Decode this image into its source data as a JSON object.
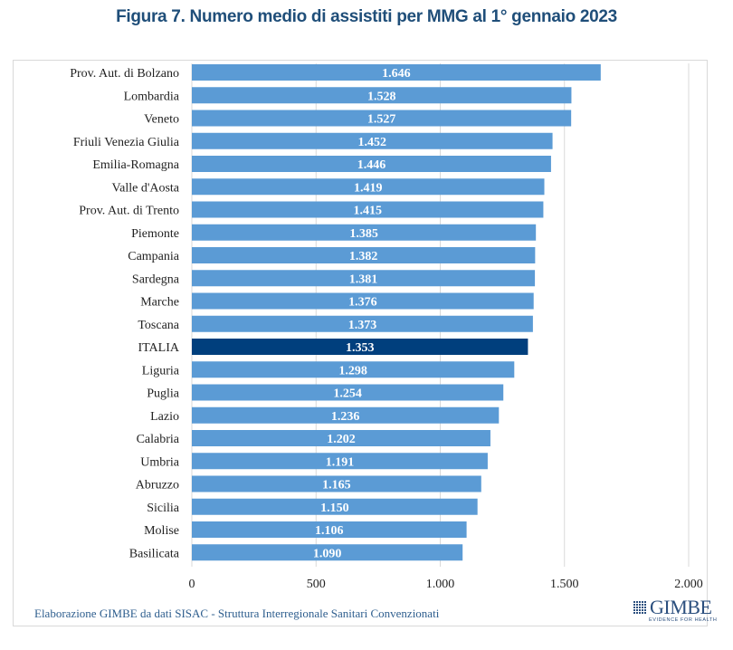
{
  "chart_data": {
    "type": "bar",
    "orientation": "horizontal",
    "title": "Figura 7. Numero medio di assistiti per MMG al 1° gennaio 2023",
    "xlabel": "",
    "ylabel": "",
    "xlim": [
      0,
      2000
    ],
    "x_ticks": [
      0,
      500,
      1000,
      1500,
      2000
    ],
    "x_tick_labels": [
      "0",
      "500",
      "1.000",
      "1.500",
      "2.000"
    ],
    "grid": "vertical",
    "categories": [
      "Prov. Aut. di Bolzano",
      "Lombardia",
      "Veneto",
      "Friuli Venezia Giulia",
      "Emilia-Romagna",
      "Valle d'Aosta",
      "Prov. Aut. di Trento",
      "Piemonte",
      "Campania",
      "Sardegna",
      "Marche",
      "Toscana",
      "ITALIA",
      "Liguria",
      "Puglia",
      "Lazio",
      "Calabria",
      "Umbria",
      "Abruzzo",
      "Sicilia",
      "Molise",
      "Basilicata"
    ],
    "values": [
      1646,
      1528,
      1527,
      1452,
      1446,
      1419,
      1415,
      1385,
      1382,
      1381,
      1376,
      1373,
      1353,
      1298,
      1254,
      1236,
      1202,
      1191,
      1165,
      1150,
      1106,
      1090
    ],
    "value_labels": [
      "1.646",
      "1.528",
      "1.527",
      "1.452",
      "1.446",
      "1.419",
      "1.415",
      "1.385",
      "1.382",
      "1.381",
      "1.376",
      "1.373",
      "1.353",
      "1.298",
      "1.254",
      "1.236",
      "1.202",
      "1.191",
      "1.165",
      "1.150",
      "1.106",
      "1.090"
    ],
    "highlight_category": "ITALIA",
    "colors": {
      "bar": "#5b9bd5",
      "highlight": "#003f7d",
      "grid": "#d9d9d9",
      "title": "#1f4e79"
    }
  },
  "source_note": "Elaborazione GIMBE da dati SISAC - Struttura Interregionale Sanitari Convenzionati",
  "logo": {
    "name": "GIMBE",
    "tagline": "EVIDENCE FOR HEALTH"
  }
}
